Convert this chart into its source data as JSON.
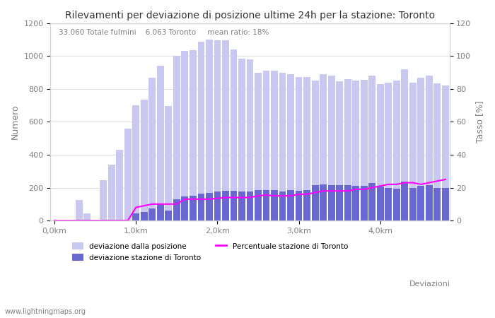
{
  "title": "Rilevamenti per deviazione di posizione ultime 24h per la stazione: Toronto",
  "subtitle": "33.060 Totale fulmini    6.063 Toronto     mean ratio: 18%",
  "xlabel": "Deviazioni",
  "ylabel_left": "Numero",
  "ylabel_right": "Tasso [%]",
  "watermark": "www.lightningmaps.org",
  "xtick_labels": [
    "0,0km",
    "1,0km",
    "2,0km",
    "3,0km",
    "4,0km"
  ],
  "xtick_positions": [
    0,
    10,
    20,
    30,
    40
  ],
  "ylim_left": [
    0,
    1200
  ],
  "ylim_right": [
    0,
    120
  ],
  "yticks_left": [
    0,
    200,
    400,
    600,
    800,
    1000,
    1200
  ],
  "yticks_right": [
    0,
    20,
    40,
    60,
    80,
    100,
    120
  ],
  "bar_color_light": "#c8c8f0",
  "bar_color_dark": "#6868d0",
  "line_color": "#ff00ff",
  "total_bars": [
    2,
    0,
    0,
    125,
    45,
    0,
    245,
    340,
    430,
    560,
    700,
    735,
    870,
    940,
    695,
    1000,
    1030,
    1035,
    1090,
    1100,
    1095,
    1095,
    1040,
    985,
    980,
    900,
    910,
    910,
    900,
    890,
    875,
    875,
    850,
    890,
    880,
    848,
    860,
    850,
    855,
    880,
    830,
    840,
    850,
    920,
    840,
    870,
    880,
    835,
    820
  ],
  "station_bars": [
    0,
    0,
    0,
    0,
    0,
    0,
    0,
    0,
    0,
    0,
    45,
    50,
    75,
    100,
    60,
    130,
    145,
    150,
    165,
    170,
    175,
    180,
    180,
    175,
    175,
    185,
    185,
    185,
    175,
    185,
    180,
    185,
    215,
    220,
    215,
    215,
    215,
    210,
    210,
    230,
    205,
    200,
    195,
    235,
    200,
    210,
    215,
    200,
    200
  ],
  "ratio_line": [
    0,
    0,
    0,
    0,
    0,
    0,
    0,
    0,
    0,
    0,
    8,
    9,
    10,
    10,
    10,
    10,
    13,
    13,
    13,
    13,
    13.5,
    14,
    14,
    14,
    14,
    15,
    15.5,
    15,
    15,
    15,
    16,
    16,
    17,
    18,
    18,
    18,
    18,
    19,
    19,
    20,
    21,
    22,
    22,
    23,
    23,
    22,
    23,
    24,
    25
  ],
  "legend_label_light": "deviazione dalla posizione",
  "legend_label_dark": "deviazione stazione di Toronto",
  "legend_label_line": "Percentuale stazione di Toronto"
}
